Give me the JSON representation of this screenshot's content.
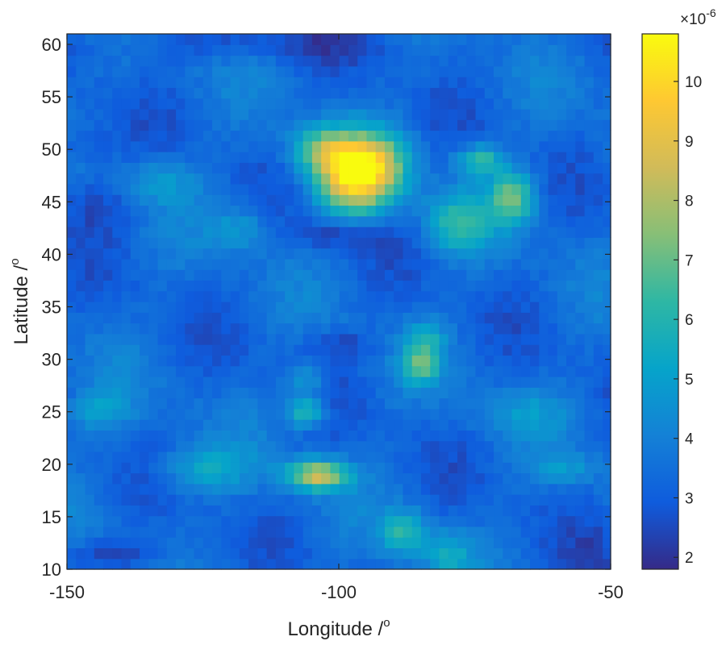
{
  "chart_data": {
    "type": "heatmap",
    "xlabel": "Longitude /",
    "xlabel_sup": "o",
    "ylabel": "Latitude /",
    "ylabel_sup": "o",
    "xlim": [
      -150,
      -50
    ],
    "ylim": [
      10,
      61
    ],
    "x_ticks": [
      -150,
      -100,
      -50
    ],
    "x_tick_labels": [
      "-150",
      "-100",
      "-50"
    ],
    "y_ticks": [
      10,
      15,
      20,
      25,
      30,
      35,
      40,
      45,
      50,
      55,
      60
    ],
    "y_tick_labels": [
      "10",
      "15",
      "20",
      "25",
      "30",
      "35",
      "40",
      "45",
      "50",
      "55",
      "60"
    ],
    "grid": false,
    "colormap": "parula",
    "colormap_stops": [
      "#352a87",
      "#0f5cdd",
      "#1481d6",
      "#06a4ca",
      "#2eb7a4",
      "#87bf77",
      "#d1bb59",
      "#fec832",
      "#f9fb0e"
    ],
    "colorbar": {
      "location": "right",
      "clim": [
        1.8,
        10.8
      ],
      "ticks": [
        2,
        3,
        4,
        5,
        6,
        7,
        8,
        9,
        10
      ],
      "tick_labels": [
        "2",
        "3",
        "4",
        "5",
        "6",
        "7",
        "8",
        "9",
        "10"
      ],
      "multiplier_base": "×10",
      "multiplier_exp": "-6"
    },
    "grid_resolution": {
      "x_step": 1.67,
      "y_step": 1.02
    },
    "background_level": 3.4,
    "features": [
      {
        "lon": -97,
        "lat": 47.5,
        "amplitude": 6.8,
        "sx": 5,
        "sy": 2.5
      },
      {
        "lon": -103,
        "lat": 50,
        "amplitude": 3.0,
        "sx": 4,
        "sy": 1.5
      },
      {
        "lon": -92,
        "lat": 49,
        "amplitude": 2.0,
        "sx": 4,
        "sy": 2
      },
      {
        "lon": -74,
        "lat": 49,
        "amplitude": 3.0,
        "sx": 3,
        "sy": 1
      },
      {
        "lon": -68,
        "lat": 45.5,
        "amplitude": 3.6,
        "sx": 3,
        "sy": 1.7
      },
      {
        "lon": -78,
        "lat": 43,
        "amplitude": 2.6,
        "sx": 4,
        "sy": 2
      },
      {
        "lon": -85,
        "lat": 29.5,
        "amplitude": 3.0,
        "sx": 2.5,
        "sy": 1.2
      },
      {
        "lon": -84,
        "lat": 32,
        "amplitude": 1.8,
        "sx": 2.5,
        "sy": 1.2
      },
      {
        "lon": -106,
        "lat": 25,
        "amplitude": 3.0,
        "sx": 2.5,
        "sy": 1
      },
      {
        "lon": -106,
        "lat": 28,
        "amplitude": 1.6,
        "sx": 2.5,
        "sy": 1
      },
      {
        "lon": -104,
        "lat": 19,
        "amplitude": 5.0,
        "sx": 4,
        "sy": 1
      },
      {
        "lon": -125,
        "lat": 19.5,
        "amplitude": 1.8,
        "sx": 6,
        "sy": 1.5
      },
      {
        "lon": -88,
        "lat": 13.5,
        "amplitude": 2.6,
        "sx": 3,
        "sy": 1.5
      },
      {
        "lon": -80,
        "lat": 11.5,
        "amplitude": 1.8,
        "sx": 3,
        "sy": 1.5
      },
      {
        "lon": -118,
        "lat": 42.5,
        "amplitude": 1.4,
        "sx": 4,
        "sy": 1.5
      },
      {
        "lon": -133,
        "lat": 47,
        "amplitude": 1.4,
        "sx": 5,
        "sy": 1.5
      },
      {
        "lon": -144,
        "lat": 25,
        "amplitude": 1.5,
        "sx": 4,
        "sy": 1.5
      },
      {
        "lon": -66,
        "lat": 25,
        "amplitude": 1.0,
        "sx": 6,
        "sy": 1.5
      },
      {
        "lon": -58,
        "lat": 19.5,
        "amplitude": 1.2,
        "sx": 4,
        "sy": 1
      },
      {
        "lon": -100,
        "lat": 42,
        "amplitude": -1.2,
        "sx": 6,
        "sy": 1
      },
      {
        "lon": -100,
        "lat": 31.5,
        "amplitude": -0.9,
        "sx": 5,
        "sy": 1
      },
      {
        "lon": -145,
        "lat": 45,
        "amplitude": -1.0,
        "sx": 5,
        "sy": 2
      },
      {
        "lon": -140,
        "lat": 11.5,
        "amplitude": -1.0,
        "sx": 8,
        "sy": 1
      },
      {
        "lon": -115,
        "lat": 60,
        "amplitude": -0.8,
        "sx": 20,
        "sy": 1
      },
      {
        "lon": -53,
        "lat": 11,
        "amplitude": -0.8,
        "sx": 3,
        "sy": 2
      },
      {
        "lon": -147,
        "lat": 50.5,
        "amplitude": -0.8,
        "sx": 4,
        "sy": 1.5
      }
    ]
  }
}
